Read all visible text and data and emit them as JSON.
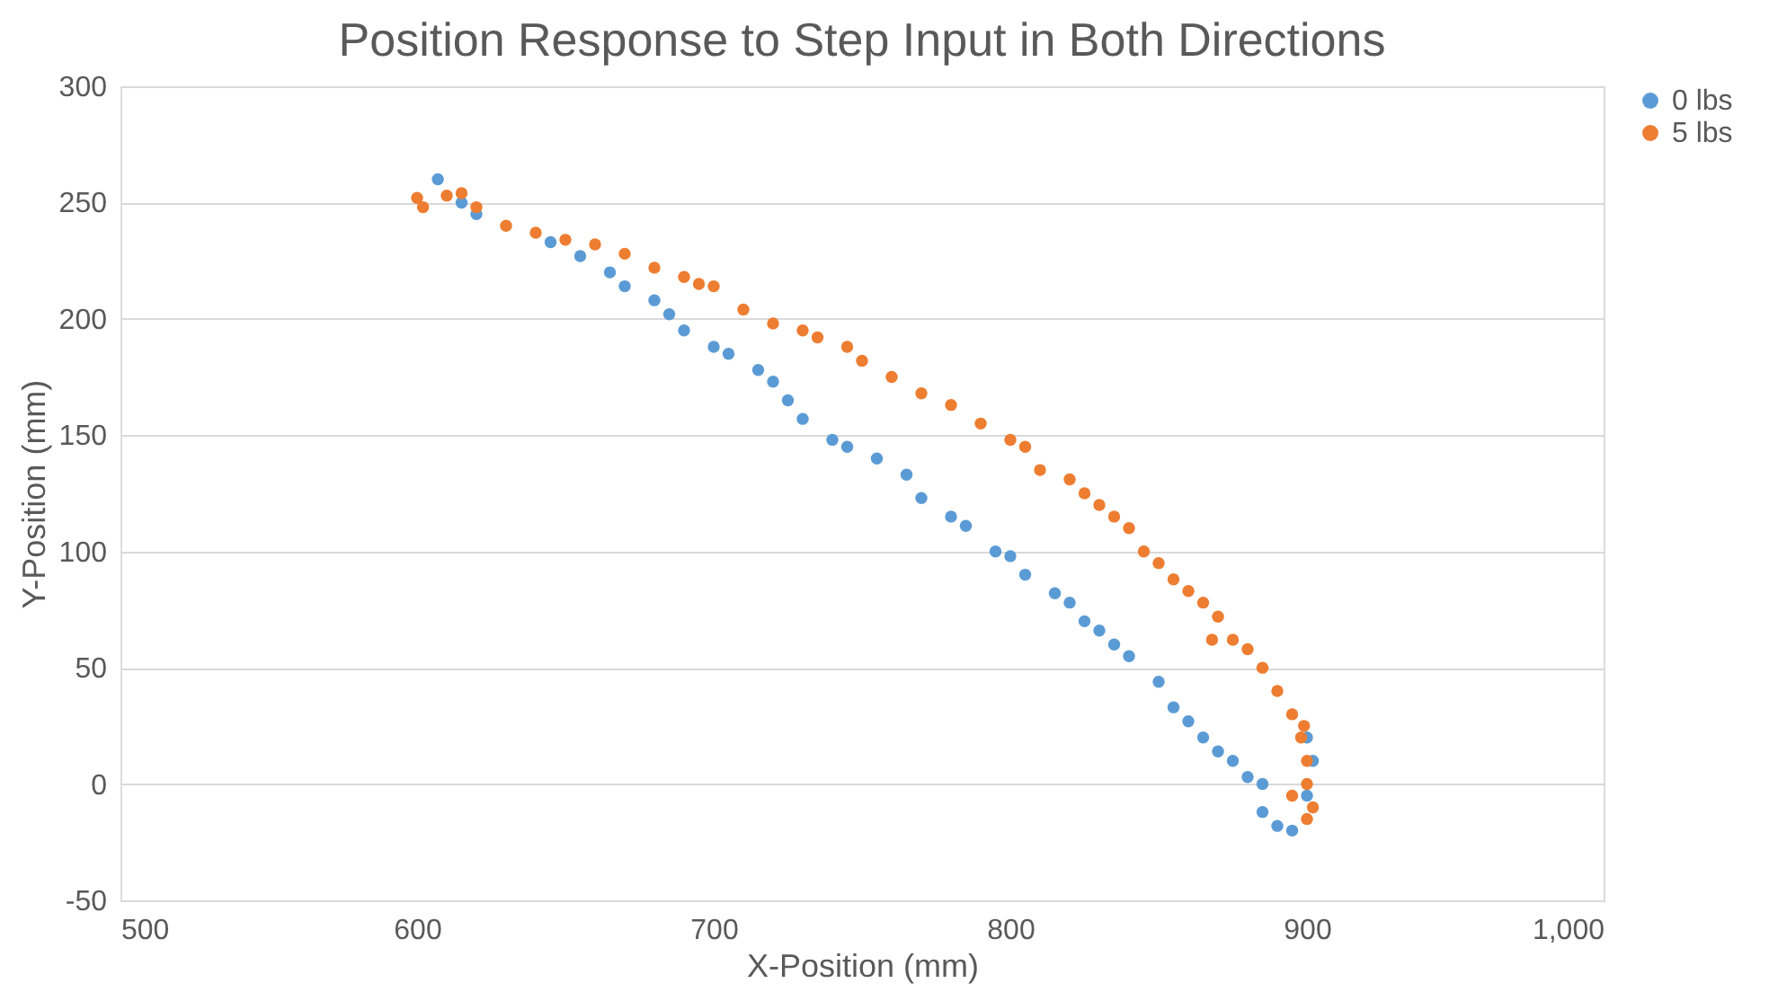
{
  "chart_data": {
    "type": "scatter",
    "title": "Position Response to Step Input in Both Directions",
    "xlabel": "X-Position (mm)",
    "ylabel": "Y-Position (mm)",
    "xlim": [
      500,
      1000
    ],
    "xticks": [
      500,
      600,
      700,
      800,
      900,
      {
        "value": 1000,
        "label": "1,000"
      }
    ],
    "ylim": [
      -50,
      300
    ],
    "yticks": [
      -50,
      0,
      50,
      100,
      150,
      200,
      250,
      300
    ],
    "grid": "y",
    "legend": "right",
    "marker": "circle",
    "series": [
      {
        "name": "0 lbs",
        "color": "#5b9bd5",
        "x": [
          607,
          615,
          620,
          645,
          655,
          665,
          670,
          680,
          685,
          690,
          700,
          705,
          715,
          720,
          725,
          730,
          740,
          745,
          755,
          765,
          770,
          780,
          785,
          795,
          800,
          805,
          815,
          820,
          825,
          830,
          835,
          840,
          850,
          855,
          860,
          865,
          870,
          875,
          880,
          885,
          885,
          890,
          895,
          900,
          902,
          900
        ],
        "values": [
          260,
          250,
          245,
          233,
          227,
          220,
          214,
          208,
          202,
          195,
          188,
          185,
          178,
          173,
          165,
          157,
          148,
          145,
          140,
          133,
          123,
          115,
          111,
          100,
          98,
          90,
          82,
          78,
          70,
          66,
          60,
          55,
          44,
          33,
          27,
          20,
          14,
          10,
          3,
          0,
          -12,
          -18,
          -20,
          -5,
          10,
          20
        ]
      },
      {
        "name": "5 lbs",
        "color": "#ed7d31",
        "x": [
          600,
          602,
          610,
          615,
          620,
          630,
          640,
          650,
          660,
          670,
          680,
          690,
          695,
          700,
          710,
          720,
          730,
          735,
          745,
          750,
          760,
          770,
          780,
          790,
          800,
          805,
          810,
          820,
          825,
          830,
          835,
          840,
          845,
          850,
          855,
          860,
          865,
          868,
          870,
          875,
          880,
          885,
          890,
          895,
          898,
          900,
          900,
          902,
          900,
          895,
          899
        ],
        "values": [
          252,
          248,
          253,
          254,
          248,
          240,
          237,
          234,
          232,
          228,
          222,
          218,
          215,
          214,
          204,
          198,
          195,
          192,
          188,
          182,
          175,
          168,
          163,
          155,
          148,
          145,
          135,
          131,
          125,
          120,
          115,
          110,
          100,
          95,
          88,
          83,
          78,
          62,
          72,
          62,
          58,
          50,
          40,
          30,
          20,
          10,
          0,
          -10,
          -15,
          -5,
          25
        ]
      }
    ]
  }
}
